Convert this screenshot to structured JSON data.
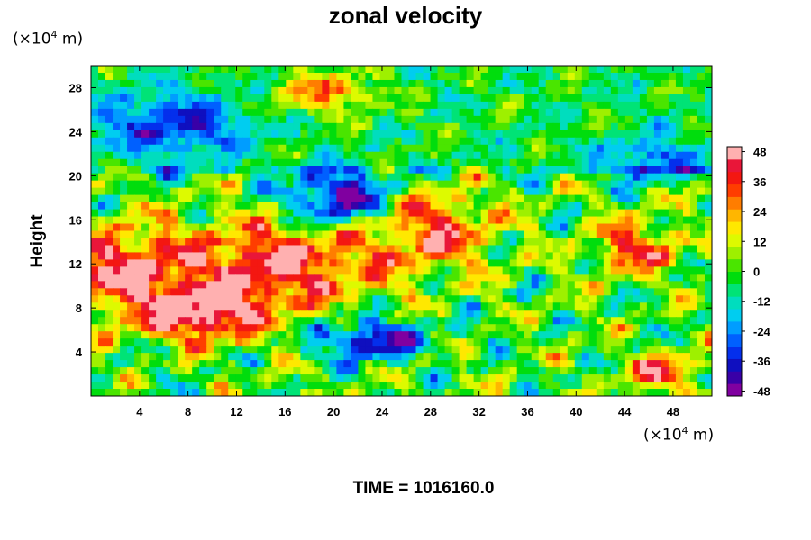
{
  "chart_data": {
    "type": "heatmap",
    "title": "zonal velocity",
    "ylabel": "Height",
    "xlabel": "",
    "x_unit": {
      "prefix": "(×10",
      "exp": "4",
      "suffix": " m)"
    },
    "y_unit": {
      "prefix": "(×10",
      "exp": "4",
      "suffix": " m)"
    },
    "xlim": [
      0,
      51.2
    ],
    "ylim": [
      0,
      30
    ],
    "x_ticks": [
      4,
      8,
      12,
      16,
      20,
      24,
      28,
      32,
      36,
      40,
      44,
      48
    ],
    "y_ticks": [
      4,
      8,
      12,
      16,
      20,
      24,
      28
    ],
    "colorbar": {
      "range": [
        -50,
        50
      ],
      "ticks": [
        48,
        36,
        24,
        12,
        0,
        -12,
        -24,
        -36,
        -48
      ]
    },
    "footer": "TIME = 1016160.0"
  }
}
